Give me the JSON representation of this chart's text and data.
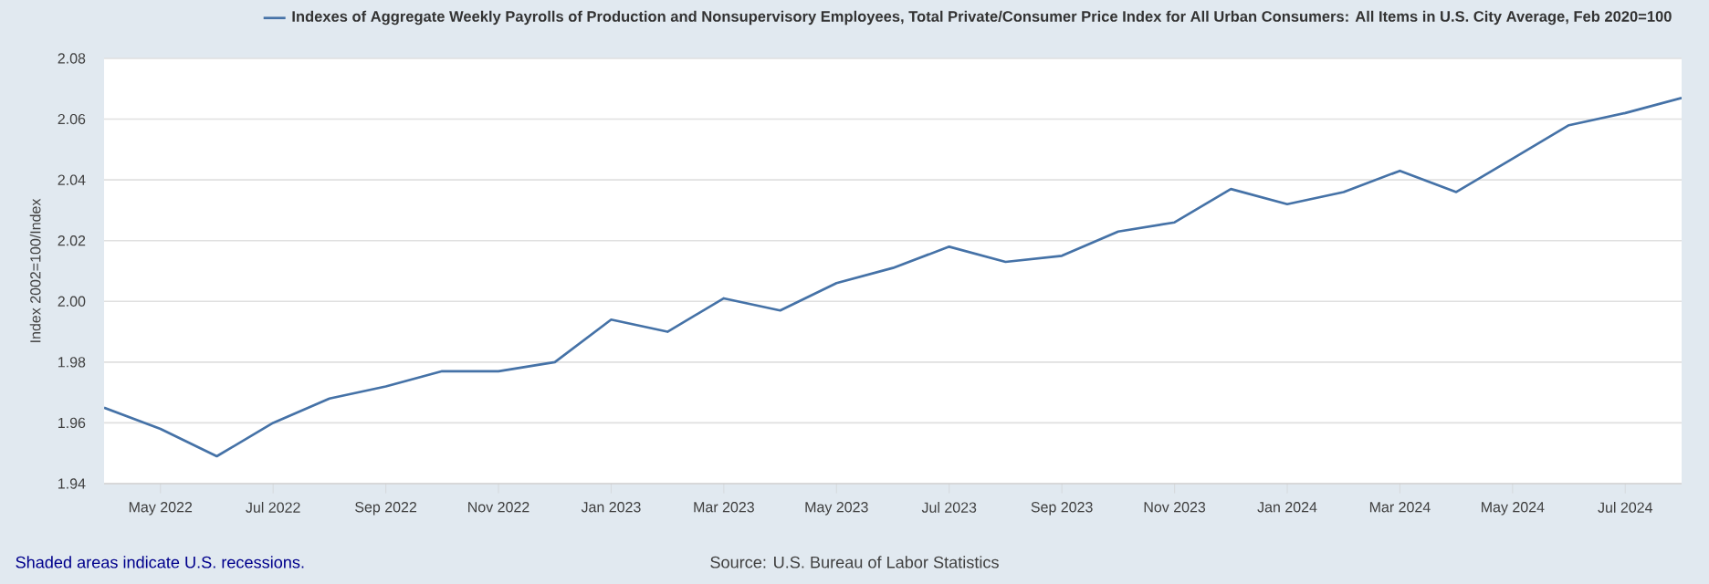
{
  "chart_data": {
    "type": "line",
    "ylabel": "Index 2002=100/Index",
    "x": [
      "2022-04",
      "2022-05",
      "2022-06",
      "2022-07",
      "2022-08",
      "2022-09",
      "2022-10",
      "2022-11",
      "2022-12",
      "2023-01",
      "2023-02",
      "2023-03",
      "2023-04",
      "2023-05",
      "2023-06",
      "2023-07",
      "2023-08",
      "2023-09",
      "2023-10",
      "2023-11",
      "2023-12",
      "2024-01",
      "2024-02",
      "2024-03",
      "2024-04",
      "2024-05",
      "2024-06",
      "2024-07",
      "2024-08"
    ],
    "series": [
      {
        "name": "Indexes of Aggregate Weekly Payrolls of Production and Nonsupervisory Employees, Total Private/Consumer Price Index for All Urban Consumers: All Items in U.S. City Average, Feb 2020=100",
        "color": "#4572a7",
        "values": [
          1.965,
          1.958,
          1.949,
          1.96,
          1.968,
          1.972,
          1.977,
          1.977,
          1.98,
          1.994,
          1.99,
          2.001,
          1.997,
          2.006,
          2.011,
          2.018,
          2.013,
          2.015,
          2.023,
          2.026,
          2.037,
          2.032,
          2.036,
          2.043,
          2.036,
          2.047,
          2.058,
          2.062,
          2.067
        ]
      }
    ],
    "xlim": [
      "2022-04",
      "2024-08"
    ],
    "xticks": [
      {
        "value": "2022-05",
        "label": "May 2022"
      },
      {
        "value": "2022-07",
        "label": "Jul 2022"
      },
      {
        "value": "2022-09",
        "label": "Sep 2022"
      },
      {
        "value": "2022-11",
        "label": "Nov 2022"
      },
      {
        "value": "2023-01",
        "label": "Jan 2023"
      },
      {
        "value": "2023-03",
        "label": "Mar 2023"
      },
      {
        "value": "2023-05",
        "label": "May 2023"
      },
      {
        "value": "2023-07",
        "label": "Jul 2023"
      },
      {
        "value": "2023-09",
        "label": "Sep 2023"
      },
      {
        "value": "2023-11",
        "label": "Nov 2023"
      },
      {
        "value": "2024-01",
        "label": "Jan 2024"
      },
      {
        "value": "2024-03",
        "label": "Mar 2024"
      },
      {
        "value": "2024-05",
        "label": "May 2024"
      },
      {
        "value": "2024-07",
        "label": "Jul 2024"
      }
    ],
    "ylim": [
      1.94,
      2.08
    ],
    "yticks": [
      {
        "value": 1.94,
        "label": "1.94"
      },
      {
        "value": 1.96,
        "label": "1.96"
      },
      {
        "value": 1.98,
        "label": "1.98"
      },
      {
        "value": 2.0,
        "label": "2.00"
      },
      {
        "value": 2.02,
        "label": "2.02"
      },
      {
        "value": 2.04,
        "label": "2.04"
      },
      {
        "value": 2.06,
        "label": "2.06"
      },
      {
        "value": 2.08,
        "label": "2.08"
      }
    ],
    "grid": "y",
    "legend": "top",
    "marker": "none",
    "line_style": "solid",
    "annotations": [
      "Shaded areas indicate U.S. recessions.",
      "Source: U.S. Bureau of Labor Statistics"
    ]
  }
}
